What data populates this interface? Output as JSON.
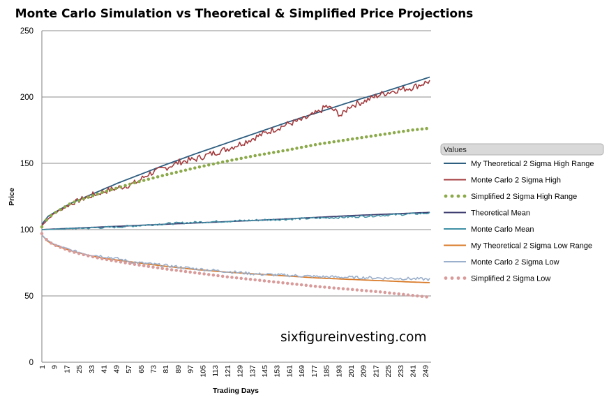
{
  "chart_data": {
    "type": "line",
    "title": "Monte Carlo Simulation vs Theoretical & Simplified Price Projections",
    "xlabel": "Trading Days",
    "ylabel": "Price",
    "ylim": [
      0,
      250
    ],
    "yticks": [
      0,
      50,
      100,
      150,
      200,
      250
    ],
    "xlim": [
      1,
      252
    ],
    "xticks": [
      1,
      9,
      17,
      25,
      33,
      41,
      49,
      57,
      65,
      73,
      81,
      89,
      97,
      105,
      113,
      121,
      129,
      137,
      145,
      153,
      161,
      169,
      177,
      185,
      193,
      201,
      209,
      217,
      225,
      233,
      241,
      249
    ],
    "grid": "horizontal",
    "legend_title": "Values",
    "legend_position": "right",
    "watermark": "sixfigureinvesting.com",
    "series": [
      {
        "name": "My Theoretical 2 Sigma High Range",
        "color": "#2E5E80",
        "style": "solid",
        "width": 1.8,
        "x": [
          1,
          5,
          10,
          20,
          30,
          40,
          50,
          60,
          80,
          100,
          120,
          140,
          160,
          180,
          200,
          220,
          240,
          252
        ],
        "values": [
          104,
          110,
          113.5,
          120,
          125,
          130,
          135,
          139.5,
          148.5,
          157,
          165,
          173,
          181,
          188.5,
          196,
          203,
          210.5,
          215
        ]
      },
      {
        "name": "Monte Carlo 2 Sigma High",
        "color": "#A33A3D",
        "style": "jagged",
        "width": 1.6,
        "x": [
          1,
          5,
          10,
          20,
          30,
          40,
          50,
          60,
          64,
          70,
          80,
          90,
          100,
          110,
          120,
          130,
          140,
          150,
          160,
          170,
          180,
          185,
          190,
          195,
          200,
          210,
          220,
          230,
          240,
          245,
          252
        ],
        "values": [
          103,
          108,
          113,
          119.5,
          124.5,
          128.5,
          131.5,
          134.5,
          137,
          142,
          146,
          151,
          153,
          157,
          160.5,
          165,
          170,
          175,
          179.5,
          183,
          188.5,
          193,
          190,
          186,
          193,
          197,
          202,
          205,
          207,
          209,
          212
        ]
      },
      {
        "name": "Simplified 2 Sigma High Range",
        "color": "#8BAA4A",
        "style": "dotted",
        "width": 4.5,
        "x": [
          1,
          5,
          10,
          20,
          30,
          40,
          50,
          60,
          80,
          100,
          120,
          140,
          160,
          180,
          200,
          220,
          240,
          252
        ],
        "values": [
          102,
          109,
          113,
          120,
          124,
          128,
          131.5,
          135,
          141,
          146.5,
          151.5,
          156,
          160,
          164.5,
          168,
          171.5,
          175,
          176.5
        ]
      },
      {
        "name": "Theoretical Mean",
        "color": "#3E3E70",
        "style": "solid",
        "width": 1.8,
        "x": [
          1,
          50,
          100,
          150,
          200,
          252
        ],
        "values": [
          100,
          102.5,
          105,
          107.5,
          110.5,
          113
        ]
      },
      {
        "name": "Monte Carlo Mean",
        "color": "#3F90A5",
        "style": "jagged",
        "width": 1.5,
        "x": [
          1,
          25,
          50,
          75,
          100,
          125,
          150,
          175,
          200,
          225,
          252
        ],
        "values": [
          100,
          101,
          102,
          104,
          105.5,
          106.5,
          107.5,
          108.5,
          109.5,
          111,
          112.5
        ]
      },
      {
        "name": "My Theoretical 2 Sigma Low Range",
        "color": "#D97A28",
        "style": "solid",
        "width": 1.8,
        "x": [
          1,
          5,
          10,
          20,
          30,
          40,
          50,
          60,
          80,
          100,
          120,
          140,
          160,
          180,
          200,
          220,
          240,
          252
        ],
        "values": [
          96,
          91,
          88,
          84,
          81,
          78.5,
          77,
          75.5,
          72.5,
          70,
          68,
          66.5,
          65,
          63.5,
          62.5,
          61.5,
          60.5,
          60
        ]
      },
      {
        "name": "Monte Carlo 2 Sigma Low",
        "color": "#9BB0CC",
        "style": "jagged",
        "width": 1.6,
        "x": [
          1,
          5,
          10,
          20,
          30,
          40,
          50,
          60,
          80,
          100,
          120,
          140,
          160,
          180,
          200,
          220,
          240,
          252
        ],
        "values": [
          96,
          91.5,
          88.5,
          84.5,
          81.5,
          80,
          78,
          75.5,
          73,
          70.5,
          68.5,
          66.5,
          65.5,
          64.5,
          64,
          63.5,
          63,
          62.5
        ]
      },
      {
        "name": "Simplified 2 Sigma Low",
        "color": "#D99A9A",
        "style": "dotted",
        "width": 4.5,
        "x": [
          1,
          5,
          10,
          20,
          30,
          40,
          50,
          60,
          80,
          100,
          120,
          140,
          160,
          180,
          200,
          220,
          240,
          252
        ],
        "values": [
          97,
          91,
          88,
          83.5,
          80.5,
          78,
          76,
          74,
          70.5,
          67.5,
          64.5,
          62,
          59.5,
          57,
          55,
          53,
          50.5,
          49
        ]
      }
    ]
  }
}
